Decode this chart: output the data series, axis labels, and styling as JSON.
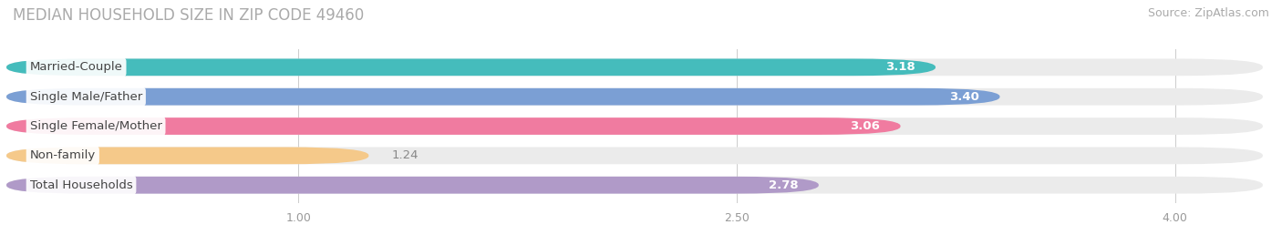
{
  "title": "MEDIAN HOUSEHOLD SIZE IN ZIP CODE 49460",
  "source": "Source: ZipAtlas.com",
  "categories": [
    "Married-Couple",
    "Single Male/Father",
    "Single Female/Mother",
    "Non-family",
    "Total Households"
  ],
  "values": [
    3.18,
    3.4,
    3.06,
    1.24,
    2.78
  ],
  "bar_colors": [
    "#45BCBC",
    "#7B9FD4",
    "#F07BA0",
    "#F5C98A",
    "#B09AC8"
  ],
  "bar_bg_color": "#EBEBEB",
  "xlim_data": [
    0,
    4.3
  ],
  "xlim_display": [
    0,
    4.3
  ],
  "xticks": [
    1.0,
    2.5,
    4.0
  ],
  "value_label_color_inside": "#FFFFFF",
  "value_label_color_outside": "#888888",
  "title_fontsize": 12,
  "source_fontsize": 9,
  "label_fontsize": 9.5,
  "tick_fontsize": 9,
  "bar_height": 0.58,
  "inside_threshold": 2.0,
  "label_pill_color": "#FFFFFF",
  "label_text_color": "#444444"
}
